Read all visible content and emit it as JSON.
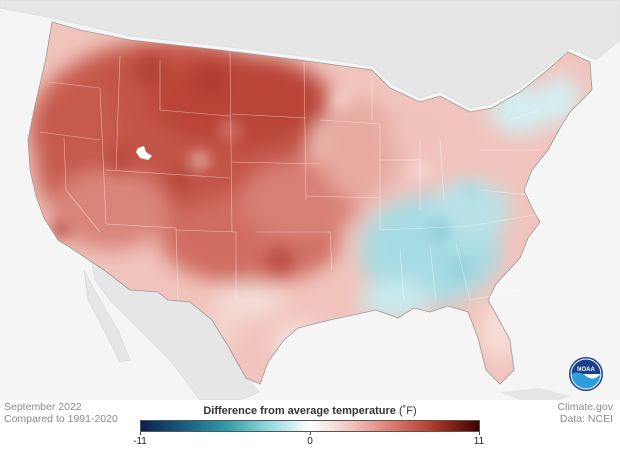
{
  "footer": {
    "line1": "September 2022",
    "line2": "Compared to 1991-2020",
    "source1": "Climate.gov",
    "source2": "Data: NCEI"
  },
  "legend": {
    "title": "Difference from average temperature",
    "unit": "(˚F)",
    "min": "-11",
    "mid": "0",
    "max": "11",
    "colors": [
      "#0b1f4f",
      "#1a5b7d",
      "#2f9aa6",
      "#8fd7df",
      "#ffffff",
      "#f2c2b9",
      "#d9786b",
      "#a83528",
      "#3f0000"
    ]
  },
  "logo": {
    "text": "NOAA",
    "colors": {
      "outer": "#1b3f8b",
      "inner": "#2f9cde"
    }
  },
  "map_colors": {
    "land_outside": "#e6e6e6",
    "ocean": "#f5f5f5",
    "warm_strong": "#c25447",
    "warm_mid": "#d9867a",
    "warm_light": "#f0c4bc",
    "neutral": "#f8eeec",
    "cool_light": "#cdebf0",
    "cool_mid": "#9ed6df"
  }
}
